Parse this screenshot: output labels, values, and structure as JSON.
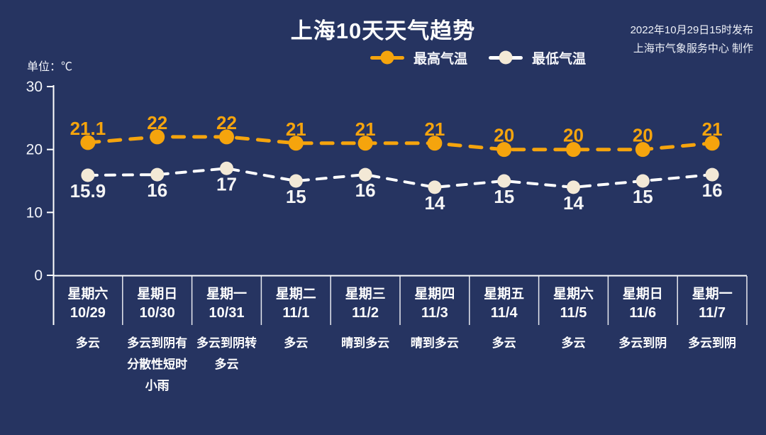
{
  "header": {
    "title": "上海10天天气趋势",
    "release_line1": "2022年10月29日15时发布",
    "release_line2": "上海市气象服务中心 制作"
  },
  "unit_label": "单位：℃",
  "colors": {
    "background": "#263461",
    "axis": "#ffffff",
    "max_temp": "#f5a40d",
    "min_temp_line": "#ffffff",
    "min_temp_marker": "#f3e9d6",
    "label_white": "#f5f5f5"
  },
  "chart_data": {
    "type": "line",
    "title": "上海10天天气趋势",
    "ylabel": "单位：℃",
    "ylim": [
      0,
      30
    ],
    "yticks": [
      30,
      20,
      10,
      0
    ],
    "grid": false,
    "legend_position": "top",
    "categories_day": [
      "星期六",
      "星期日",
      "星期一",
      "星期二",
      "星期三",
      "星期四",
      "星期五",
      "星期六",
      "星期日",
      "星期一"
    ],
    "categories_date": [
      "10/29",
      "10/30",
      "10/31",
      "11/1",
      "11/2",
      "11/3",
      "11/4",
      "11/5",
      "11/6",
      "11/7"
    ],
    "weather": [
      "多云",
      "多云到阴有分散性短时小雨",
      "多云到阴转多云",
      "多云",
      "晴到多云",
      "晴到多云",
      "多云",
      "多云",
      "多云到阴",
      "多云到阴"
    ],
    "series": [
      {
        "id": "max-temp",
        "name": "最高气温",
        "values": [
          21.1,
          22,
          22,
          21,
          21,
          21,
          20,
          20,
          20,
          21
        ],
        "color": "#f5a40d",
        "marker_fill": "#f5a40d",
        "label_color": "#f5a40d",
        "label_position": "above",
        "line_width": 5,
        "dash": "16 14",
        "marker_radius": 10.5
      },
      {
        "id": "min-temp",
        "name": "最低气温",
        "values": [
          15.9,
          16,
          17,
          15,
          16,
          14,
          15,
          14,
          15,
          16
        ],
        "color": "#ffffff",
        "marker_fill": "#f3e9d6",
        "label_color": "#f5f5f5",
        "label_position": "below",
        "line_width": 4,
        "dash": "13 12",
        "marker_radius": 9.5
      }
    ]
  }
}
